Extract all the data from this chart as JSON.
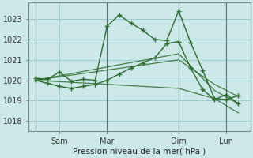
{
  "background_color": "#cce8e8",
  "grid_color": "#99cccc",
  "line_color": "#2d6a2d",
  "ylabel_text": "Pression niveau de la mer( hPa )",
  "ylim": [
    1017.5,
    1023.8
  ],
  "yticks": [
    1018,
    1019,
    1020,
    1021,
    1022,
    1023
  ],
  "day_labels": [
    "Sam",
    "Mar",
    "Dim",
    "Lun"
  ],
  "day_positions": [
    1,
    3,
    6,
    8
  ],
  "series": [
    {
      "x": [
        0,
        0.5,
        1.0,
        1.5,
        2.0,
        2.5,
        3.0,
        3.5,
        4.0,
        4.5,
        5.0,
        5.5,
        6.0,
        6.5,
        7.0,
        7.5,
        8.0,
        8.5
      ],
      "y": [
        1020.1,
        1020.05,
        1020.4,
        1019.95,
        1020.05,
        1020.0,
        1022.65,
        1023.2,
        1022.8,
        1022.45,
        1022.0,
        1021.95,
        1023.4,
        1021.85,
        1020.5,
        1019.1,
        1019.05,
        1019.25
      ]
    },
    {
      "x": [
        0,
        0.5,
        1.0,
        1.5,
        2.0,
        2.5,
        3.0,
        3.5,
        4.0,
        4.5,
        5.0,
        5.5,
        6.0,
        6.5,
        7.0,
        7.5,
        8.0,
        8.5
      ],
      "y": [
        1020.0,
        1019.85,
        1019.7,
        1019.6,
        1019.7,
        1019.8,
        1020.0,
        1020.3,
        1020.6,
        1020.85,
        1021.1,
        1021.8,
        1021.9,
        1020.6,
        1019.55,
        1019.05,
        1019.3,
        1018.85
      ]
    },
    {
      "x": [
        0,
        6,
        7.5,
        8.5
      ],
      "y": [
        1020.0,
        1021.3,
        1019.5,
        1018.85
      ]
    },
    {
      "x": [
        0,
        6,
        7.5,
        8.5
      ],
      "y": [
        1020.0,
        1021.0,
        1019.8,
        1019.2
      ]
    },
    {
      "x": [
        0,
        6,
        7.5,
        8.5
      ],
      "y": [
        1020.0,
        1019.6,
        1019.1,
        1018.4
      ]
    }
  ],
  "vline_positions": [
    0,
    3,
    6,
    8
  ],
  "xlim": [
    -0.3,
    9.0
  ],
  "xlabel_fontsize": 7.5,
  "tick_fontsize": 7
}
